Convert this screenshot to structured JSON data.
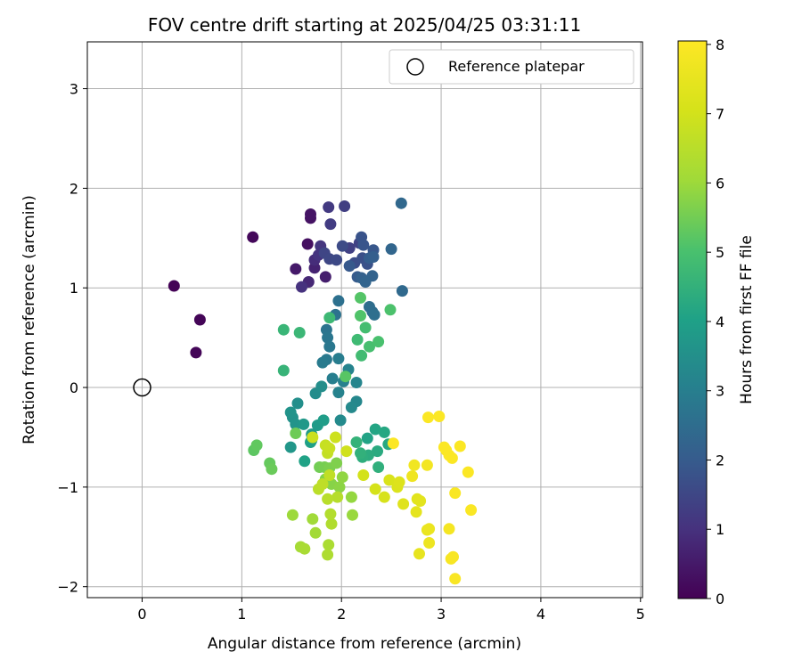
{
  "chart_data": {
    "type": "scatter",
    "title": "FOV centre drift starting at 2025/04/25 03:31:11",
    "xlabel": "Angular distance from reference (arcmin)",
    "ylabel": "Rotation from reference (arcmin)",
    "xlim": [
      -0.55,
      5.02
    ],
    "ylim": [
      -2.11,
      3.47
    ],
    "xticks": [
      0,
      1,
      2,
      3,
      4,
      5
    ],
    "yticks": [
      -2,
      -1,
      0,
      1,
      2,
      3
    ],
    "grid": true,
    "colormap": "viridis",
    "colorbar": {
      "label": "Hours from first FF file",
      "range": [
        0,
        8.05
      ],
      "ticks": [
        0,
        1,
        2,
        3,
        4,
        5,
        6,
        7,
        8
      ]
    },
    "legend": {
      "location": "top-right",
      "label": "Reference platepar"
    },
    "reference_point": {
      "x": 0,
      "y": 0
    },
    "points": [
      [
        0.32,
        1.02,
        0.05
      ],
      [
        0.58,
        0.68,
        0.08
      ],
      [
        0.54,
        0.35,
        0.1
      ],
      [
        1.11,
        1.51,
        0.15
      ],
      [
        1.66,
        1.44,
        0.3
      ],
      [
        1.69,
        1.7,
        0.35
      ],
      [
        1.69,
        1.74,
        0.4
      ],
      [
        1.54,
        1.19,
        0.5
      ],
      [
        1.84,
        1.11,
        0.6
      ],
      [
        1.73,
        1.2,
        0.7
      ],
      [
        1.67,
        1.06,
        0.8
      ],
      [
        1.73,
        1.28,
        0.9
      ],
      [
        1.6,
        1.01,
        1.0
      ],
      [
        1.77,
        1.33,
        1.05
      ],
      [
        1.79,
        1.42,
        1.1
      ],
      [
        1.87,
        1.81,
        1.2
      ],
      [
        1.89,
        1.64,
        1.25
      ],
      [
        2.03,
        1.82,
        1.3
      ],
      [
        2.08,
        1.4,
        1.35
      ],
      [
        2.18,
        1.45,
        1.4
      ],
      [
        1.83,
        1.35,
        1.45
      ],
      [
        1.88,
        1.29,
        1.5
      ],
      [
        1.95,
        1.28,
        1.55
      ],
      [
        2.01,
        1.42,
        1.6
      ],
      [
        2.13,
        1.25,
        1.65
      ],
      [
        2.21,
        1.3,
        1.7
      ],
      [
        2.26,
        1.24,
        1.75
      ],
      [
        2.2,
        1.51,
        1.8
      ],
      [
        2.22,
        1.43,
        1.85
      ],
      [
        2.32,
        1.38,
        1.9
      ],
      [
        2.08,
        1.22,
        1.95
      ],
      [
        2.16,
        1.11,
        2.0
      ],
      [
        2.28,
        1.3,
        2.05
      ],
      [
        2.32,
        1.31,
        2.1
      ],
      [
        2.2,
        1.1,
        2.15
      ],
      [
        2.31,
        1.12,
        2.2
      ],
      [
        2.24,
        1.06,
        2.25
      ],
      [
        2.5,
        1.39,
        2.3
      ],
      [
        2.6,
        1.85,
        2.35
      ],
      [
        2.61,
        0.97,
        2.4
      ],
      [
        2.31,
        0.76,
        2.45
      ],
      [
        2.28,
        0.81,
        2.5
      ],
      [
        2.33,
        0.73,
        2.55
      ],
      [
        1.97,
        0.87,
        2.6
      ],
      [
        1.94,
        0.73,
        2.65
      ],
      [
        1.85,
        0.58,
        2.7
      ],
      [
        1.86,
        0.5,
        2.75
      ],
      [
        1.88,
        0.41,
        2.8
      ],
      [
        1.85,
        0.28,
        2.85
      ],
      [
        1.81,
        0.25,
        2.9
      ],
      [
        1.97,
        0.29,
        2.95
      ],
      [
        1.91,
        0.09,
        3.0
      ],
      [
        2.02,
        0.06,
        3.05
      ],
      [
        1.97,
        -0.05,
        3.1
      ],
      [
        2.07,
        0.18,
        3.15
      ],
      [
        2.15,
        0.05,
        3.2
      ],
      [
        2.15,
        -0.14,
        3.25
      ],
      [
        2.1,
        -0.2,
        3.3
      ],
      [
        1.99,
        -0.33,
        3.35
      ],
      [
        1.74,
        -0.06,
        3.4
      ],
      [
        1.8,
        0.01,
        3.45
      ],
      [
        1.56,
        -0.16,
        3.5
      ],
      [
        1.51,
        -0.3,
        3.55
      ],
      [
        1.49,
        -0.25,
        3.6
      ],
      [
        1.54,
        -0.37,
        3.65
      ],
      [
        1.49,
        -0.6,
        3.7
      ],
      [
        1.62,
        -0.37,
        3.75
      ],
      [
        1.7,
        -0.47,
        3.8
      ],
      [
        1.76,
        -0.38,
        3.85
      ],
      [
        1.82,
        -0.33,
        3.9
      ],
      [
        1.7,
        -0.53,
        3.95
      ],
      [
        1.69,
        -0.55,
        4.0
      ],
      [
        1.63,
        -0.74,
        4.05
      ],
      [
        2.26,
        -0.51,
        4.1
      ],
      [
        2.34,
        -0.42,
        4.15
      ],
      [
        2.43,
        -0.45,
        4.2
      ],
      [
        2.47,
        -0.57,
        4.25
      ],
      [
        2.36,
        -0.64,
        4.3
      ],
      [
        2.27,
        -0.68,
        4.35
      ],
      [
        2.21,
        -0.7,
        4.4
      ],
      [
        2.37,
        -0.8,
        4.45
      ],
      [
        2.19,
        -0.66,
        4.5
      ],
      [
        2.15,
        -0.55,
        4.55
      ],
      [
        1.42,
        0.17,
        4.6
      ],
      [
        1.42,
        0.58,
        4.65
      ],
      [
        1.58,
        0.55,
        4.7
      ],
      [
        1.88,
        0.7,
        4.75
      ],
      [
        2.16,
        0.48,
        4.8
      ],
      [
        2.2,
        0.32,
        4.85
      ],
      [
        2.24,
        0.6,
        4.9
      ],
      [
        2.28,
        0.41,
        4.95
      ],
      [
        2.37,
        0.46,
        5.0
      ],
      [
        2.49,
        0.78,
        5.05
      ],
      [
        2.19,
        0.72,
        5.1
      ],
      [
        2.19,
        0.9,
        5.15
      ],
      [
        2.04,
        0.11,
        5.2
      ],
      [
        1.12,
        -0.63,
        5.25
      ],
      [
        1.15,
        -0.58,
        5.3
      ],
      [
        1.28,
        -0.76,
        5.35
      ],
      [
        1.3,
        -0.82,
        5.4
      ],
      [
        1.54,
        -0.46,
        5.45
      ],
      [
        1.78,
        -0.8,
        5.5
      ],
      [
        1.83,
        -0.8,
        5.55
      ],
      [
        1.88,
        -0.81,
        5.6
      ],
      [
        1.95,
        -0.76,
        5.65
      ],
      [
        1.84,
        -0.92,
        5.7
      ],
      [
        1.9,
        -0.97,
        5.75
      ],
      [
        1.98,
        -1.0,
        5.8
      ],
      [
        2.01,
        -0.9,
        5.85
      ],
      [
        2.1,
        -1.1,
        5.9
      ],
      [
        2.11,
        -1.28,
        5.95
      ],
      [
        1.51,
        -1.28,
        6.0
      ],
      [
        1.71,
        -1.32,
        6.05
      ],
      [
        1.74,
        -1.46,
        6.1
      ],
      [
        1.59,
        -1.6,
        6.15
      ],
      [
        1.63,
        -1.62,
        6.2
      ],
      [
        1.87,
        -1.58,
        6.25
      ],
      [
        1.86,
        -1.68,
        6.3
      ],
      [
        1.9,
        -1.37,
        6.35
      ],
      [
        1.89,
        -1.27,
        6.4
      ],
      [
        1.96,
        -1.1,
        6.45
      ],
      [
        1.86,
        -1.12,
        6.5
      ],
      [
        1.77,
        -1.02,
        6.55
      ],
      [
        1.81,
        -0.97,
        6.6
      ],
      [
        1.88,
        -0.88,
        6.65
      ],
      [
        1.86,
        -0.66,
        6.7
      ],
      [
        1.84,
        -0.58,
        6.75
      ],
      [
        1.88,
        -0.61,
        6.8
      ],
      [
        1.71,
        -0.5,
        6.85
      ],
      [
        1.94,
        -0.5,
        6.9
      ],
      [
        2.05,
        -0.64,
        6.95
      ],
      [
        2.22,
        -0.88,
        7.0
      ],
      [
        2.34,
        -1.02,
        7.05
      ],
      [
        2.43,
        -1.1,
        7.1
      ],
      [
        2.48,
        -0.93,
        7.15
      ],
      [
        2.56,
        -1.0,
        7.2
      ],
      [
        2.58,
        -0.95,
        7.25
      ],
      [
        2.62,
        -1.17,
        7.3
      ],
      [
        2.76,
        -1.12,
        7.35
      ],
      [
        2.79,
        -1.14,
        7.4
      ],
      [
        2.75,
        -1.25,
        7.45
      ],
      [
        2.78,
        -1.67,
        7.5
      ],
      [
        2.86,
        -1.43,
        7.55
      ],
      [
        2.88,
        -1.42,
        7.6
      ],
      [
        2.88,
        -1.56,
        7.65
      ],
      [
        2.71,
        -0.89,
        7.7
      ],
      [
        2.73,
        -0.78,
        7.75
      ],
      [
        2.86,
        -0.78,
        7.8
      ],
      [
        3.08,
        -1.42,
        7.85
      ],
      [
        3.1,
        -1.72,
        7.9
      ],
      [
        3.12,
        -1.7,
        7.92
      ],
      [
        3.14,
        -1.92,
        7.94
      ],
      [
        3.14,
        -1.06,
        7.96
      ],
      [
        3.3,
        -1.23,
        7.98
      ],
      [
        3.27,
        -0.85,
        8.0
      ],
      [
        3.05,
        -0.63,
        8.0
      ],
      [
        3.03,
        -0.6,
        8.0
      ],
      [
        3.08,
        -0.68,
        8.0
      ],
      [
        3.11,
        -0.71,
        8.0
      ],
      [
        3.19,
        -0.59,
        8.0
      ],
      [
        2.87,
        -0.3,
        8.0
      ],
      [
        2.98,
        -0.29,
        8.0
      ],
      [
        2.52,
        -0.56,
        8.0
      ]
    ]
  }
}
